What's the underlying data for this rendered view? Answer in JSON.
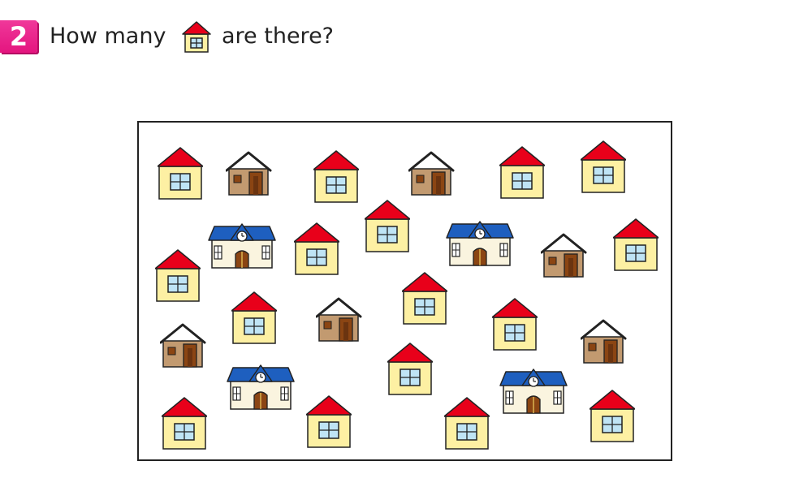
{
  "question": {
    "number": "2",
    "text_before": "How many",
    "text_after": "are there?",
    "target_icon": "yellow-house-icon"
  },
  "picture": {
    "icon_types": [
      "yellow-house-icon",
      "brown-house-icon",
      "school-icon"
    ],
    "yellow_house_count": 16,
    "brown_house_count": 6,
    "school_count": 4
  },
  "colors": {
    "badge": "#e4157f",
    "yellow_wall": "#fdf0a3",
    "red_roof": "#e8001a",
    "brown_wall": "#c29a70",
    "brown_door": "#8b4513",
    "school_roof": "#1e5fbf",
    "window_glass": "#bfe4f5"
  }
}
